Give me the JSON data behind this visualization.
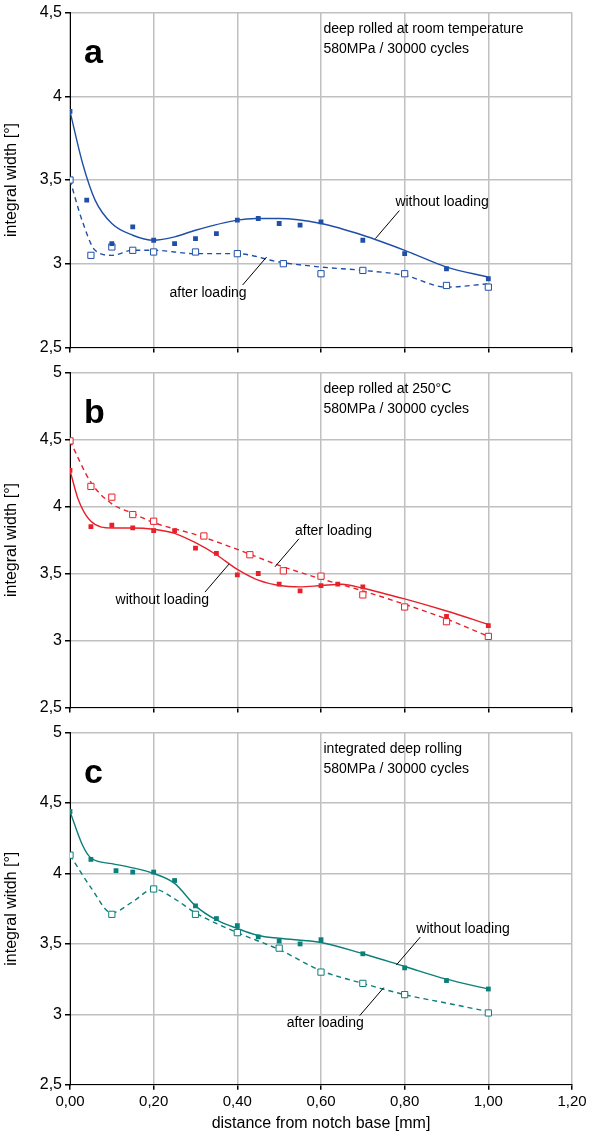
{
  "chart_data": [
    {
      "type": "scatter",
      "title": "a",
      "annotations": [
        "deep rolled at room temperature",
        "580MPa / 30000 cycles",
        {
          "text": "without loading",
          "x": 0.73,
          "y": 3.15
        },
        {
          "text": "after loading",
          "x": 0.47,
          "y": 3.04
        }
      ],
      "ylabel": "integral width [°]",
      "xlim": [
        0,
        1.2
      ],
      "xticks": [
        {
          "value": 0,
          "label": null
        },
        {
          "value": 0.2,
          "label": null
        },
        {
          "value": 0.4,
          "label": null
        },
        {
          "value": 0.6,
          "label": null
        },
        {
          "value": 0.8,
          "label": null
        },
        {
          "value": 1,
          "label": null
        },
        {
          "value": 1.2,
          "label": null
        }
      ],
      "ylim": [
        2.5,
        4.5
      ],
      "yticks": [
        {
          "value": 2.5,
          "label": "2,5"
        },
        3,
        {
          "value": 3.5,
          "label": "3,5"
        },
        4,
        {
          "value": 4.5,
          "label": "4,5"
        }
      ],
      "tick_labels": "y",
      "grid": true,
      "legend": false,
      "series": [
        {
          "marker": "square",
          "color": "#1f4fa8",
          "x": [
            0,
            0.04,
            0.1,
            0.15,
            0.2,
            0.25,
            0.3,
            0.35,
            0.4,
            0.45,
            0.5,
            0.55,
            0.6,
            0.7,
            0.8,
            0.9,
            1.0
          ],
          "values": [
            3.91,
            3.38,
            3.12,
            3.22,
            3.14,
            3.12,
            3.15,
            3.18,
            3.26,
            3.27,
            3.24,
            3.23,
            3.25,
            3.14,
            3.06,
            2.97,
            2.91
          ]
        },
        {
          "marker": "square",
          "color": "#1f4fa8",
          "x": [
            0,
            0.05,
            0.1,
            0.15,
            0.2,
            0.3,
            0.4,
            0.51,
            0.6,
            0.7,
            0.8,
            0.9,
            1.0
          ],
          "values": [
            3.5,
            3.05,
            3.1,
            3.08,
            3.07,
            3.07,
            3.06,
            3.0,
            2.94,
            2.96,
            2.94,
            2.87,
            2.86
          ]
        },
        {
          "type": "line",
          "marker": "none",
          "line_style": "solid",
          "color": "#1f4fa8",
          "x": [
            0,
            0.03,
            0.06,
            0.1,
            0.15,
            0.2,
            0.25,
            0.3,
            0.4,
            0.45,
            0.5,
            0.6,
            0.7,
            0.8,
            0.9,
            1.0
          ],
          "values": [
            3.91,
            3.6,
            3.38,
            3.24,
            3.17,
            3.14,
            3.16,
            3.2,
            3.26,
            3.27,
            3.27,
            3.24,
            3.17,
            3.08,
            2.98,
            2.92
          ]
        },
        {
          "type": "line",
          "marker": "none",
          "line_style": "dashed",
          "color": "#1f4fa8",
          "x": [
            0,
            0.03,
            0.06,
            0.1,
            0.15,
            0.2,
            0.3,
            0.4,
            0.5,
            0.6,
            0.7,
            0.8,
            0.9,
            1.0
          ],
          "values": [
            3.5,
            3.25,
            3.08,
            3.05,
            3.08,
            3.08,
            3.06,
            3.06,
            3.01,
            2.98,
            2.96,
            2.93,
            2.86,
            2.88
          ]
        }
      ]
    },
    {
      "type": "scatter",
      "title": "b",
      "annotations": [
        "deep rolled at 250°C",
        "580MPa / 30000 cycles",
        {
          "text": "after loading",
          "x": 0.49,
          "y": 3.55
        },
        {
          "text": "without loading",
          "x": 0.38,
          "y": 3.57
        }
      ],
      "ylabel": "integral width [°]",
      "xlim": [
        0,
        1.2
      ],
      "xticks": [
        {
          "value": 0,
          "label": null
        },
        {
          "value": 0.2,
          "label": null
        },
        {
          "value": 0.4,
          "label": null
        },
        {
          "value": 0.6,
          "label": null
        },
        {
          "value": 0.8,
          "label": null
        },
        {
          "value": 1,
          "label": null
        },
        {
          "value": 1.2,
          "label": null
        }
      ],
      "ylim": [
        2.5,
        5
      ],
      "yticks": [
        {
          "value": 2.5,
          "label": "2,5"
        },
        3,
        {
          "value": 3.5,
          "label": "3,5"
        },
        4,
        {
          "value": 4.5,
          "label": "4,5"
        },
        5
      ],
      "tick_labels": "y",
      "grid": true,
      "legend": false,
      "series": [
        {
          "marker": "square",
          "color": "#e8202a",
          "x": [
            0,
            0.05,
            0.1,
            0.15,
            0.2,
            0.25,
            0.3,
            0.35,
            0.4,
            0.45,
            0.5,
            0.55,
            0.6,
            0.64,
            0.7,
            0.9,
            1.0
          ],
          "values": [
            4.27,
            3.85,
            3.86,
            3.84,
            3.82,
            3.82,
            3.69,
            3.65,
            3.49,
            3.5,
            3.42,
            3.37,
            3.41,
            3.42,
            3.4,
            3.18,
            3.11
          ]
        },
        {
          "marker": "square",
          "color": "#e8202a",
          "x": [
            0,
            0.05,
            0.1,
            0.15,
            0.2,
            0.32,
            0.43,
            0.51,
            0.6,
            0.7,
            0.8,
            0.9,
            1.0
          ],
          "values": [
            4.49,
            4.15,
            4.07,
            3.94,
            3.89,
            3.78,
            3.64,
            3.52,
            3.48,
            3.34,
            3.25,
            3.14,
            3.03
          ]
        },
        {
          "type": "line",
          "marker": "none",
          "line_style": "solid",
          "color": "#e8202a",
          "x": [
            0,
            0.02,
            0.05,
            0.1,
            0.15,
            0.2,
            0.25,
            0.3,
            0.35,
            0.4,
            0.45,
            0.5,
            0.55,
            0.6,
            0.65,
            0.7,
            0.8,
            0.9,
            1.0
          ],
          "values": [
            4.27,
            4.05,
            3.89,
            3.84,
            3.84,
            3.83,
            3.8,
            3.73,
            3.64,
            3.53,
            3.45,
            3.41,
            3.4,
            3.41,
            3.42,
            3.39,
            3.31,
            3.22,
            3.12
          ]
        },
        {
          "type": "line",
          "marker": "none",
          "line_style": "dashed",
          "color": "#e8202a",
          "x": [
            0,
            0.05,
            0.1,
            0.15,
            0.2,
            0.3,
            0.4,
            0.5,
            0.6,
            0.7,
            0.8,
            0.9,
            1.0
          ],
          "values": [
            4.49,
            4.18,
            4.02,
            3.95,
            3.88,
            3.79,
            3.68,
            3.56,
            3.46,
            3.37,
            3.27,
            3.16,
            3.03
          ]
        }
      ]
    },
    {
      "type": "scatter",
      "title": "c",
      "annotations": [
        "integrated deep rolling",
        "580MPa / 30000 cycles",
        {
          "text": "without loading",
          "x": 0.78,
          "y": 3.35
        },
        {
          "text": "after loading",
          "x": 0.75,
          "y": 3.19
        }
      ],
      "xlabel": "distance from notch base [mm]",
      "ylabel": "integral witdh [°]",
      "xlim": [
        0,
        1.2
      ],
      "xticks": [
        {
          "value": 0,
          "label": "0,00"
        },
        {
          "value": 0.2,
          "label": "0,20"
        },
        {
          "value": 0.4,
          "label": "0,40"
        },
        {
          "value": 0.6,
          "label": "0,60"
        },
        {
          "value": 0.8,
          "label": "0,80"
        },
        {
          "value": 1,
          "label": "1,00"
        },
        {
          "value": 1.2,
          "label": "1,20"
        }
      ],
      "ylim": [
        2.5,
        5
      ],
      "yticks": [
        {
          "value": 2.5,
          "label": "2,5"
        },
        3,
        {
          "value": 3.5,
          "label": "3,5"
        },
        4,
        {
          "value": 4.5,
          "label": "4,5"
        },
        5
      ],
      "grid": true,
      "legend": false,
      "series": [
        {
          "marker": "square",
          "color": "#0b7f7a",
          "x": [
            0,
            0.05,
            0.11,
            0.15,
            0.2,
            0.25,
            0.3,
            0.35,
            0.4,
            0.45,
            0.5,
            0.55,
            0.6,
            0.7,
            0.8,
            0.9,
            1.0
          ],
          "values": [
            4.44,
            4.1,
            4.02,
            4.01,
            4.01,
            3.95,
            3.77,
            3.68,
            3.63,
            3.55,
            3.52,
            3.5,
            3.53,
            3.43,
            3.33,
            3.24,
            3.18
          ]
        },
        {
          "marker": "square",
          "color": "#0b7f7a",
          "x": [
            0,
            0.1,
            0.2,
            0.3,
            0.4,
            0.5,
            0.6,
            0.7,
            0.8,
            1.0
          ],
          "values": [
            4.13,
            3.71,
            3.89,
            3.71,
            3.58,
            3.47,
            3.3,
            3.22,
            3.14,
            3.01
          ]
        },
        {
          "type": "line",
          "marker": "none",
          "line_style": "solid",
          "color": "#0b7f7a",
          "x": [
            0,
            0.03,
            0.05,
            0.1,
            0.15,
            0.2,
            0.25,
            0.3,
            0.35,
            0.4,
            0.45,
            0.5,
            0.6,
            0.7,
            0.8,
            0.9,
            1.0
          ],
          "values": [
            4.44,
            4.2,
            4.11,
            4.07,
            4.04,
            4.0,
            3.93,
            3.77,
            3.67,
            3.61,
            3.56,
            3.54,
            3.51,
            3.43,
            3.34,
            3.25,
            3.18
          ]
        },
        {
          "type": "line",
          "marker": "none",
          "line_style": "dashed",
          "color": "#0b7f7a",
          "x": [
            0,
            0.05,
            0.1,
            0.15,
            0.2,
            0.25,
            0.3,
            0.4,
            0.5,
            0.6,
            0.7,
            0.8,
            0.9,
            1.0
          ],
          "values": [
            4.13,
            3.9,
            3.72,
            3.8,
            3.89,
            3.82,
            3.72,
            3.58,
            3.46,
            3.31,
            3.22,
            3.14,
            3.08,
            3.02
          ]
        }
      ]
    }
  ]
}
